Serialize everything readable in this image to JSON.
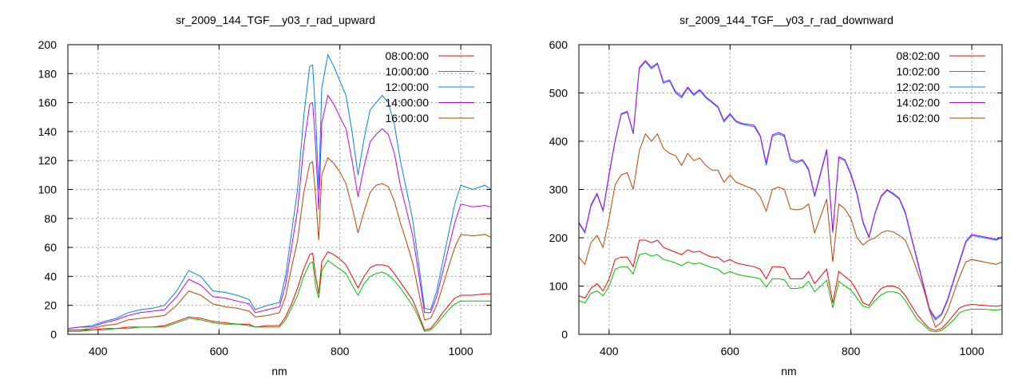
{
  "chart_data": [
    {
      "type": "line",
      "title": "sr_2009_144_TGF__y03_r_rad_upward",
      "xlabel": "nm",
      "ylabel": "",
      "xlim": [
        350,
        1050
      ],
      "ylim": [
        0,
        200
      ],
      "xticks": [
        400,
        600,
        800,
        1000
      ],
      "yticks": [
        0,
        20,
        40,
        60,
        80,
        100,
        120,
        140,
        160,
        180,
        200
      ],
      "grid": true,
      "legend_position": "top-right",
      "x": [
        350,
        370,
        390,
        410,
        430,
        450,
        470,
        490,
        510,
        530,
        550,
        570,
        590,
        610,
        630,
        650,
        660,
        680,
        700,
        710,
        720,
        730,
        740,
        750,
        755,
        760,
        765,
        770,
        780,
        790,
        800,
        810,
        820,
        830,
        840,
        850,
        860,
        870,
        880,
        890,
        900,
        910,
        920,
        930,
        940,
        950,
        960,
        970,
        980,
        990,
        1000,
        1020,
        1040,
        1050
      ],
      "series": [
        {
          "name": "08:00:00",
          "color": "#ff0000",
          "values": [
            3,
            3,
            3,
            4,
            4,
            5,
            5,
            5,
            6,
            9,
            12,
            11,
            9,
            8,
            7,
            7,
            5,
            6,
            6,
            12,
            21,
            32,
            45,
            55,
            56,
            40,
            28,
            50,
            57,
            55,
            52,
            48,
            40,
            32,
            40,
            46,
            48,
            48,
            47,
            42,
            36,
            30,
            24,
            14,
            3,
            4,
            9,
            15,
            20,
            25,
            27,
            27,
            28,
            28
          ]
        },
        {
          "name": "10:00:00",
          "color": "#00c000",
          "values": [
            2,
            2,
            3,
            3,
            4,
            4,
            5,
            5,
            5,
            8,
            11,
            10,
            8,
            7,
            7,
            6,
            5,
            5,
            5,
            10,
            18,
            27,
            40,
            49,
            50,
            33,
            25,
            44,
            51,
            48,
            45,
            42,
            34,
            27,
            35,
            40,
            42,
            43,
            41,
            37,
            32,
            26,
            20,
            12,
            2,
            3,
            7,
            12,
            17,
            21,
            23,
            23,
            23,
            23
          ]
        },
        {
          "name": "12:00:00",
          "color": "#0080ff",
          "values": [
            4,
            5,
            6,
            9,
            11,
            15,
            17,
            18,
            20,
            30,
            44,
            40,
            30,
            29,
            27,
            24,
            17,
            20,
            22,
            40,
            70,
            100,
            150,
            185,
            186,
            150,
            100,
            170,
            193,
            185,
            175,
            165,
            140,
            110,
            135,
            155,
            160,
            165,
            160,
            145,
            120,
            100,
            80,
            50,
            18,
            17,
            30,
            50,
            70,
            90,
            103,
            100,
            103,
            100
          ]
        },
        {
          "name": "14:00:00",
          "color": "#c000ff",
          "values": [
            4,
            5,
            5,
            8,
            10,
            13,
            15,
            16,
            17,
            26,
            38,
            34,
            26,
            25,
            23,
            21,
            15,
            17,
            19,
            34,
            60,
            86,
            129,
            159,
            160,
            129,
            86,
            146,
            165,
            159,
            150,
            142,
            120,
            95,
            116,
            133,
            138,
            142,
            138,
            125,
            103,
            86,
            69,
            43,
            15,
            15,
            26,
            43,
            60,
            77,
            90,
            88,
            89,
            88
          ]
        },
        {
          "name": "16:00:00",
          "color": "#c04000",
          "values": [
            3,
            3,
            4,
            6,
            7,
            10,
            11,
            12,
            13,
            20,
            30,
            27,
            21,
            19,
            18,
            16,
            12,
            13,
            15,
            26,
            46,
            65,
            97,
            118,
            119,
            95,
            65,
            110,
            122,
            118,
            112,
            104,
            88,
            70,
            85,
            98,
            103,
            104,
            102,
            92,
            77,
            64,
            50,
            30,
            10,
            11,
            20,
            33,
            47,
            60,
            69,
            68,
            69,
            67
          ]
        }
      ]
    },
    {
      "type": "line",
      "title": "sr_2009_144_TGF__y03_r_rad_downward",
      "xlabel": "nm",
      "ylabel": "",
      "xlim": [
        350,
        1050
      ],
      "ylim": [
        0,
        600
      ],
      "xticks": [
        400,
        600,
        800,
        1000
      ],
      "yticks": [
        0,
        100,
        200,
        300,
        400,
        500,
        600
      ],
      "grid": true,
      "legend_position": "top-right",
      "x": [
        350,
        360,
        370,
        380,
        390,
        400,
        410,
        420,
        430,
        440,
        450,
        460,
        470,
        480,
        490,
        500,
        510,
        520,
        530,
        540,
        550,
        560,
        570,
        580,
        590,
        600,
        610,
        620,
        640,
        650,
        660,
        670,
        680,
        690,
        700,
        710,
        720,
        730,
        740,
        760,
        770,
        780,
        790,
        800,
        810,
        820,
        830,
        840,
        850,
        860,
        870,
        880,
        890,
        900,
        910,
        920,
        930,
        940,
        950,
        960,
        970,
        980,
        990,
        1000,
        1020,
        1040,
        1050
      ],
      "series": [
        {
          "name": "08:02:00",
          "color": "#ff0000",
          "values": [
            80,
            75,
            95,
            105,
            90,
            115,
            155,
            160,
            160,
            140,
            195,
            195,
            190,
            195,
            180,
            175,
            170,
            165,
            175,
            170,
            172,
            165,
            160,
            160,
            150,
            155,
            148,
            145,
            140,
            135,
            115,
            140,
            140,
            138,
            115,
            115,
            115,
            130,
            105,
            135,
            65,
            130,
            120,
            110,
            90,
            65,
            60,
            80,
            95,
            100,
            100,
            95,
            80,
            60,
            40,
            25,
            12,
            8,
            12,
            25,
            40,
            55,
            60,
            62,
            60,
            58,
            60
          ]
        },
        {
          "name": "10:02:00",
          "color": "#00c000",
          "values": [
            70,
            65,
            85,
            90,
            80,
            100,
            135,
            140,
            140,
            125,
            165,
            168,
            162,
            165,
            155,
            152,
            148,
            142,
            150,
            146,
            148,
            143,
            138,
            135,
            125,
            130,
            125,
            122,
            118,
            115,
            98,
            115,
            115,
            113,
            95,
            95,
            97,
            110,
            88,
            112,
            55,
            110,
            100,
            92,
            75,
            58,
            55,
            70,
            82,
            88,
            88,
            85,
            70,
            50,
            30,
            20,
            8,
            5,
            8,
            18,
            30,
            45,
            50,
            52,
            52,
            50,
            52
          ]
        },
        {
          "name": "12:02:00",
          "color": "#0080ff",
          "values": [
            230,
            210,
            265,
            290,
            255,
            330,
            400,
            455,
            460,
            415,
            550,
            565,
            550,
            560,
            520,
            525,
            500,
            490,
            510,
            495,
            505,
            490,
            480,
            470,
            440,
            455,
            440,
            435,
            430,
            410,
            350,
            410,
            415,
            410,
            360,
            355,
            360,
            340,
            285,
            380,
            210,
            365,
            360,
            330,
            290,
            230,
            200,
            250,
            285,
            298,
            290,
            280,
            250,
            200,
            150,
            100,
            50,
            30,
            40,
            70,
            110,
            150,
            190,
            205,
            200,
            195,
            200
          ]
        },
        {
          "name": "14:02:00",
          "color": "#c000ff",
          "values": [
            232,
            212,
            268,
            292,
            257,
            333,
            402,
            457,
            462,
            417,
            553,
            567,
            553,
            562,
            523,
            527,
            503,
            493,
            512,
            498,
            507,
            492,
            482,
            472,
            443,
            457,
            442,
            437,
            433,
            412,
            355,
            413,
            418,
            413,
            363,
            358,
            362,
            343,
            288,
            383,
            213,
            368,
            362,
            333,
            293,
            233,
            202,
            252,
            287,
            300,
            292,
            282,
            253,
            203,
            153,
            103,
            53,
            33,
            43,
            73,
            113,
            153,
            193,
            207,
            202,
            197,
            202
          ]
        },
        {
          "name": "16:02:00",
          "color": "#c04000",
          "values": [
            160,
            145,
            190,
            205,
            180,
            240,
            310,
            330,
            335,
            300,
            380,
            415,
            400,
            415,
            385,
            375,
            370,
            350,
            375,
            360,
            365,
            350,
            340,
            340,
            315,
            330,
            315,
            310,
            300,
            285,
            255,
            300,
            305,
            300,
            260,
            258,
            260,
            270,
            210,
            280,
            150,
            270,
            260,
            240,
            200,
            185,
            195,
            200,
            210,
            215,
            212,
            205,
            195,
            165,
            130,
            95,
            50,
            15,
            25,
            50,
            85,
            120,
            150,
            155,
            150,
            145,
            150
          ]
        }
      ]
    }
  ]
}
